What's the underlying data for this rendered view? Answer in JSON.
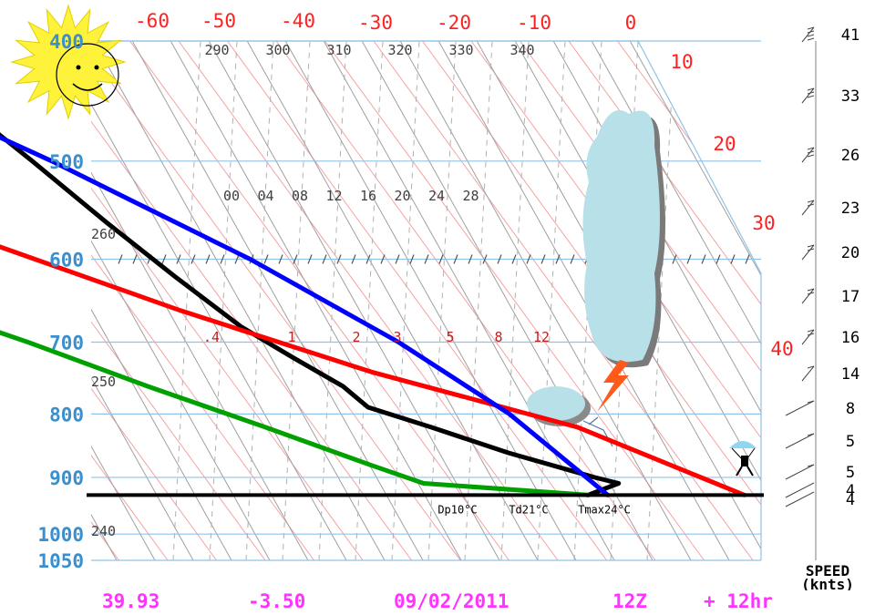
{
  "footer": {
    "latitude": "39.93",
    "longitude": "-3.50",
    "date": "09/02/2011",
    "run": "12Z",
    "forecast": "+ 12hr"
  },
  "chart_data": {
    "type": "skew-t",
    "pressure_ticks": [
      "400",
      "500",
      "600",
      "700",
      "800",
      "900",
      "1000",
      "1050"
    ],
    "temperature_ticks": [
      "-60",
      "-50",
      "-40",
      "-30",
      "-20",
      "-10",
      "0",
      "10",
      "20",
      "30",
      "40"
    ],
    "theta_ticks": [
      "290",
      "300",
      "310",
      "320",
      "330",
      "340"
    ],
    "theta_side_ticks": [
      "260",
      "250",
      "240"
    ],
    "theta_e_ticks": [
      "00",
      "04",
      "08",
      "12",
      "16",
      "20",
      "24",
      "28"
    ],
    "mixing_ratio_ticks": [
      ".4",
      "1",
      "2",
      "3",
      "5",
      "8",
      "12"
    ],
    "speed_ticks": [
      "41",
      "33",
      "26",
      "23",
      "20",
      "17",
      "16",
      "14",
      "8",
      "5",
      "5",
      "4",
      "4"
    ],
    "speed_label": "SPEED\n(knts)",
    "surface_pressure": 930,
    "annotations": [
      "Dp10°C",
      "Td21°C",
      "Tmax24°C"
    ],
    "series": [
      {
        "color": "#000000",
        "points": [
          [
            -29,
            400
          ],
          [
            -27,
            450
          ],
          [
            -24,
            500
          ],
          [
            -21,
            560
          ],
          [
            -18,
            620
          ],
          [
            -15,
            680
          ],
          [
            -12,
            720
          ],
          [
            -9,
            760
          ],
          [
            -8,
            790
          ],
          [
            -3,
            820
          ],
          [
            3,
            860
          ],
          [
            10,
            900
          ],
          [
            12,
            910
          ],
          [
            8,
            930
          ]
        ]
      },
      {
        "color": "#00a000",
        "points": [
          [
            -33,
            400
          ],
          [
            -35,
            450
          ],
          [
            -38,
            500
          ],
          [
            -44,
            560
          ],
          [
            -49,
            600
          ],
          [
            -47,
            650
          ],
          [
            -38,
            700
          ],
          [
            -29,
            760
          ],
          [
            -20,
            820
          ],
          [
            -12,
            880
          ],
          [
            -8,
            910
          ],
          [
            8,
            930
          ]
        ]
      },
      {
        "color": "#ff0000",
        "points": [
          [
            -67,
            400
          ],
          [
            -50,
            500
          ],
          [
            -35,
            580
          ],
          [
            -20,
            660
          ],
          [
            -5,
            740
          ],
          [
            12,
            820
          ],
          [
            24,
            930
          ]
        ]
      },
      {
        "color": "#0000ff",
        "points": [
          [
            -40,
            400
          ],
          [
            -22,
            500
          ],
          [
            -9,
            600
          ],
          [
            0,
            700
          ],
          [
            6,
            800
          ],
          [
            10,
            930
          ]
        ]
      }
    ],
    "wind_barbs_knots": [
      41,
      33,
      26,
      23,
      20,
      17,
      16,
      14,
      8,
      5,
      5,
      4,
      4
    ]
  }
}
